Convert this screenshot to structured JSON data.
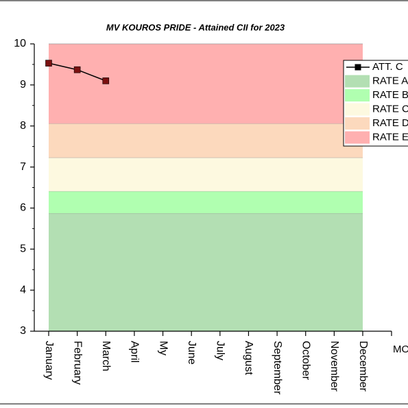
{
  "chart_data": {
    "type": "line",
    "title": "MV KOUROS PRIDE - Attained CII for 2023",
    "x_label": "MONTH",
    "categories": [
      "January",
      "February",
      "March",
      "April",
      "My",
      "June",
      "July",
      "August",
      "September",
      "October",
      "November",
      "December"
    ],
    "series": [
      {
        "name": "ATT. C",
        "color": "#000000",
        "marker_color": "#7a1010",
        "values": [
          9.53,
          9.37,
          9.1,
          null,
          null,
          null,
          null,
          null,
          null,
          null,
          null,
          null
        ]
      }
    ],
    "bands": [
      {
        "name": "RATE A",
        "color": "#b3dfb3",
        "range": [
          3,
          5.87
        ]
      },
      {
        "name": "RATE B",
        "color": "#b0ffb0",
        "range": [
          5.87,
          6.41
        ]
      },
      {
        "name": "RATE C",
        "color": "#fdf9e0",
        "range": [
          6.41,
          7.23
        ]
      },
      {
        "name": "RATE D",
        "color": "#fcd9bd",
        "range": [
          7.23,
          8.06
        ]
      },
      {
        "name": "RATE E",
        "color": "#ffb0b0",
        "range": [
          8.06,
          10
        ]
      }
    ],
    "ylim": [
      3,
      10
    ],
    "yticks": [
      3,
      4,
      5,
      6,
      7,
      8,
      9,
      10
    ],
    "legend": "upper right"
  }
}
